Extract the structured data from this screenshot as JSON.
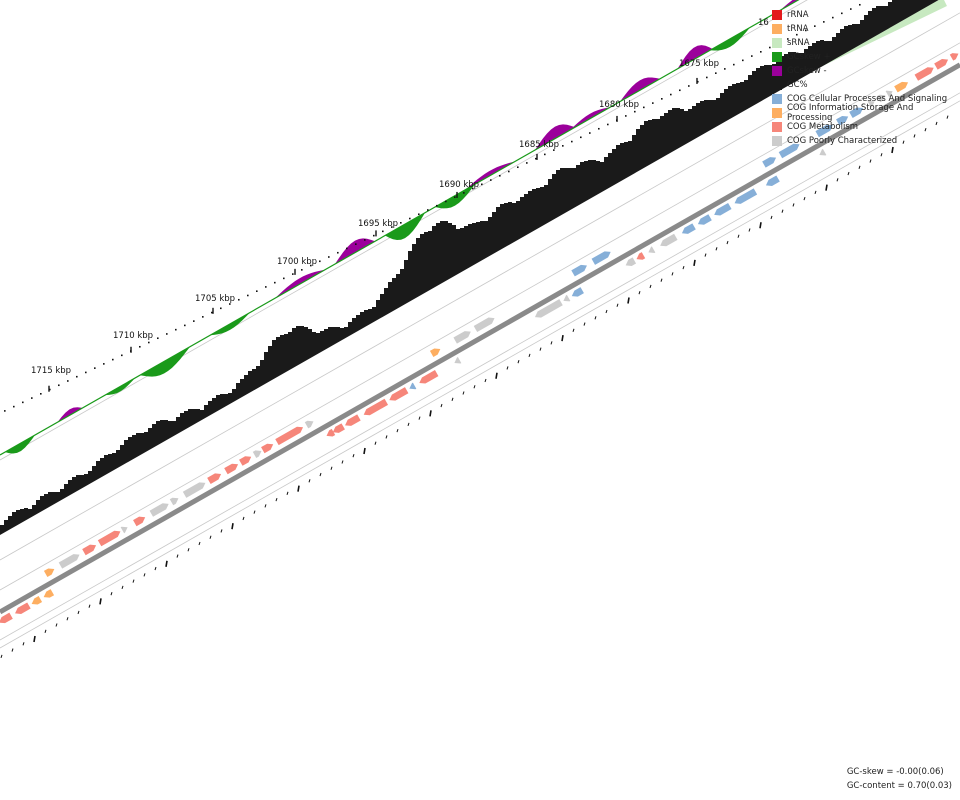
{
  "positions": [
    1675,
    1680,
    1685,
    1690,
    1695,
    1700,
    1705,
    1710,
    1715
  ],
  "position_unit": "kbp",
  "clipped_label_fragment": "16",
  "legend": [
    {
      "label": "rRNA",
      "color": "#e31a1c"
    },
    {
      "label": "tRNA",
      "color": "#fdae61"
    },
    {
      "label": "sRNA",
      "color": "#c7e9c0"
    },
    {
      "label": "GCskew +",
      "color": "#1a9a1a"
    },
    {
      "label": "GCskew -",
      "color": "#9b009b"
    },
    {
      "label": "GC%",
      "color": "#1a1a1a"
    },
    {
      "label": "COG Cellular Processes And Signaling",
      "color": "#86afd8"
    },
    {
      "label": "COG Information Storage And Processing",
      "color": "#fdae61"
    },
    {
      "label": "COG Metabolism",
      "color": "#f6867a"
    },
    {
      "label": "COG Poorly Characterized",
      "color": "#cccccc"
    }
  ],
  "stats": {
    "gc_skew": "GC-skew = -0.00(0.06)",
    "gc_content": "GC-content = 0.70(0.03)"
  }
}
